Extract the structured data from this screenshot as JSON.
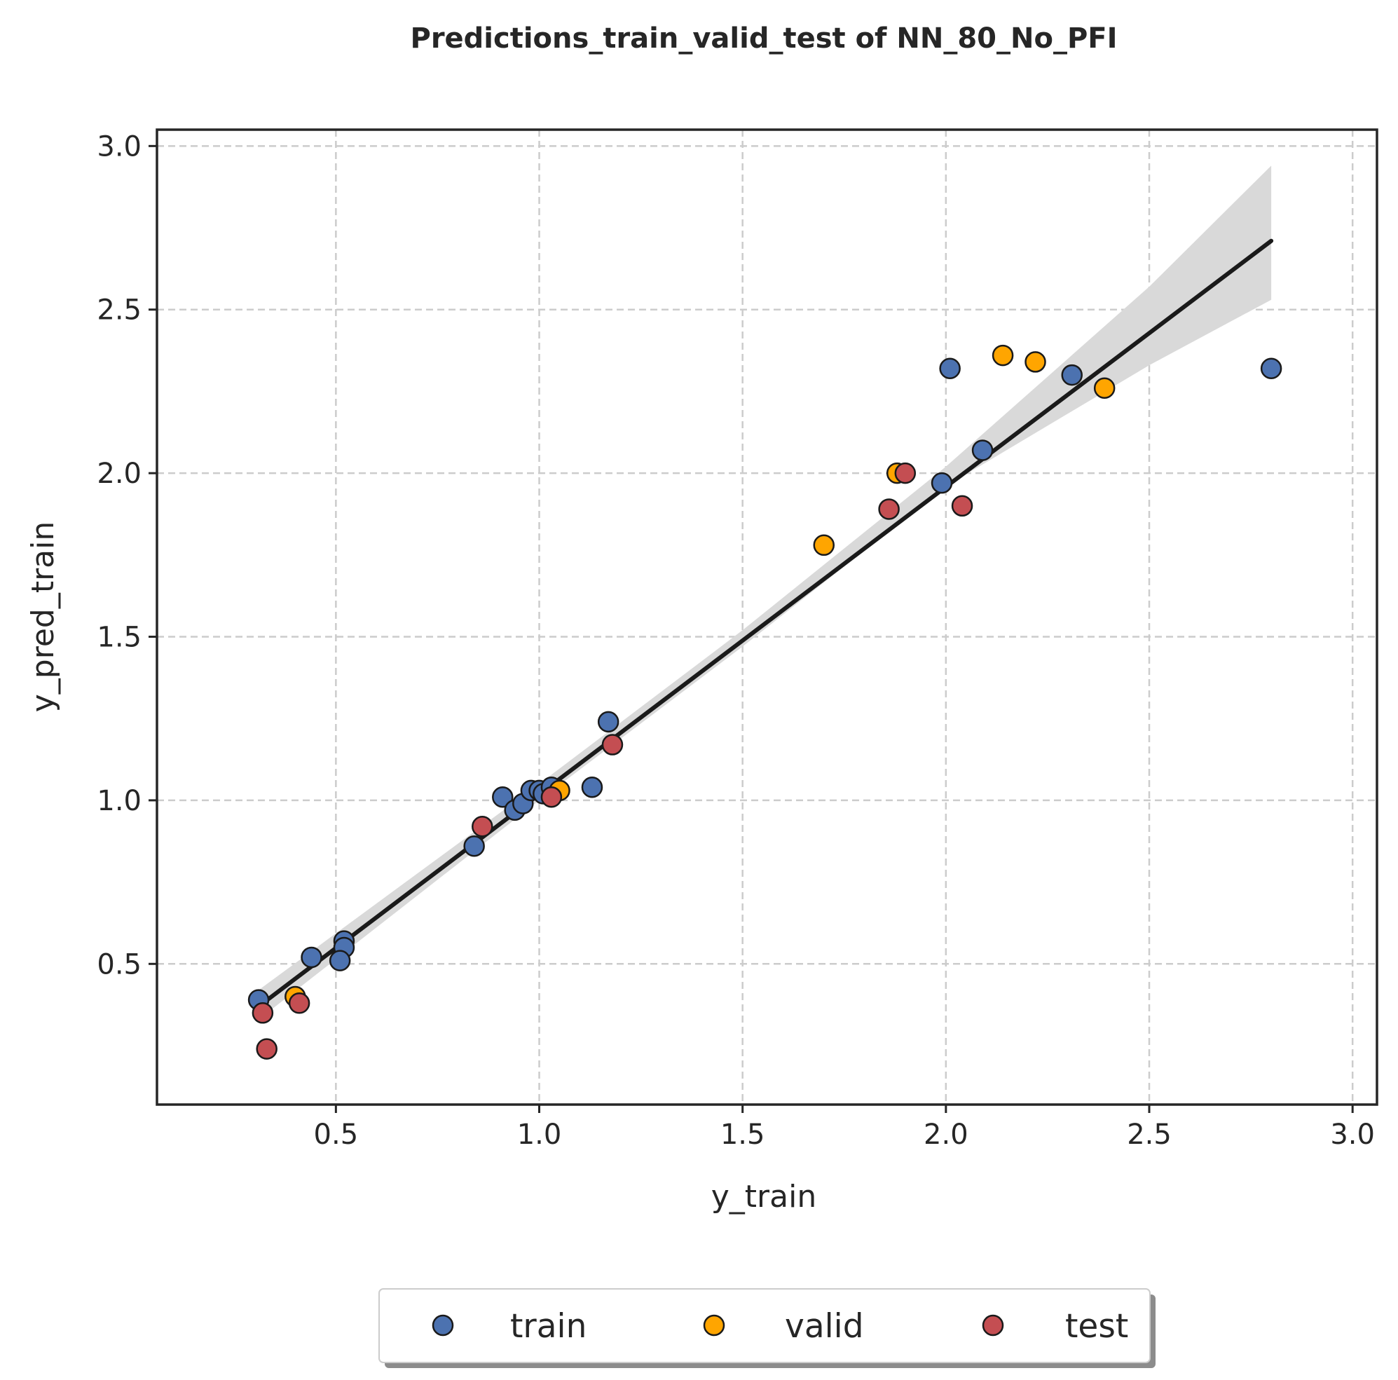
{
  "chart_data": {
    "type": "scatter",
    "title": "Predictions_train_valid_test of NN_80_No_PFI",
    "xlabel": "y_train",
    "ylabel": "y_pred_train",
    "xlim": [
      0.06,
      3.06
    ],
    "ylim": [
      0.07,
      3.05
    ],
    "xticks": [
      0.5,
      1.0,
      1.5,
      2.0,
      2.5,
      3.0
    ],
    "yticks": [
      0.5,
      1.0,
      1.5,
      2.0,
      2.5,
      3.0
    ],
    "tick_labels": {
      "x": [
        "0.5",
        "1.0",
        "1.5",
        "2.0",
        "2.5",
        "3.0"
      ],
      "y": [
        "0.5",
        "1.0",
        "1.5",
        "2.0",
        "2.5",
        "3.0"
      ]
    },
    "grid": true,
    "grid_style": "dashed",
    "legend_position": "bottom-center",
    "series": [
      {
        "name": "train",
        "color": "#4c72b0",
        "points": [
          [
            0.31,
            0.39
          ],
          [
            0.44,
            0.52
          ],
          [
            0.52,
            0.57
          ],
          [
            0.52,
            0.55
          ],
          [
            0.51,
            0.51
          ],
          [
            0.84,
            0.86
          ],
          [
            0.91,
            1.01
          ],
          [
            0.94,
            0.97
          ],
          [
            0.96,
            0.99
          ],
          [
            0.98,
            1.03
          ],
          [
            1.0,
            1.03
          ],
          [
            1.01,
            1.02
          ],
          [
            1.03,
            1.04
          ],
          [
            1.13,
            1.04
          ],
          [
            1.17,
            1.24
          ],
          [
            1.99,
            1.97
          ],
          [
            2.01,
            2.32
          ],
          [
            2.09,
            2.07
          ],
          [
            2.31,
            2.3
          ],
          [
            2.8,
            2.32
          ]
        ]
      },
      {
        "name": "valid",
        "color": "#ffa500",
        "points": [
          [
            0.4,
            0.4
          ],
          [
            1.05,
            1.03
          ],
          [
            1.7,
            1.78
          ],
          [
            1.88,
            2.0
          ],
          [
            2.14,
            2.36
          ],
          [
            2.22,
            2.34
          ],
          [
            2.39,
            2.26
          ]
        ]
      },
      {
        "name": "test",
        "color": "#c44e52",
        "points": [
          [
            0.32,
            0.35
          ],
          [
            0.33,
            0.24
          ],
          [
            0.41,
            0.38
          ],
          [
            0.86,
            0.92
          ],
          [
            1.03,
            1.01
          ],
          [
            1.18,
            1.17
          ],
          [
            1.86,
            1.89
          ],
          [
            1.9,
            2.0
          ],
          [
            2.04,
            1.9
          ]
        ]
      }
    ],
    "regression": {
      "color": "#1a1a1a",
      "band_color": "#d9d9d9",
      "line": [
        [
          0.31,
          0.37
        ],
        [
          2.8,
          2.71
        ]
      ],
      "band_upper": [
        [
          0.31,
          0.42
        ],
        [
          1.0,
          1.05
        ],
        [
          1.5,
          1.52
        ],
        [
          2.0,
          2.02
        ],
        [
          2.5,
          2.57
        ],
        [
          2.8,
          2.94
        ]
      ],
      "band_lower": [
        [
          0.31,
          0.33
        ],
        [
          1.0,
          1.0
        ],
        [
          1.5,
          1.47
        ],
        [
          2.0,
          1.96
        ],
        [
          2.5,
          2.33
        ],
        [
          2.8,
          2.53
        ]
      ]
    }
  }
}
